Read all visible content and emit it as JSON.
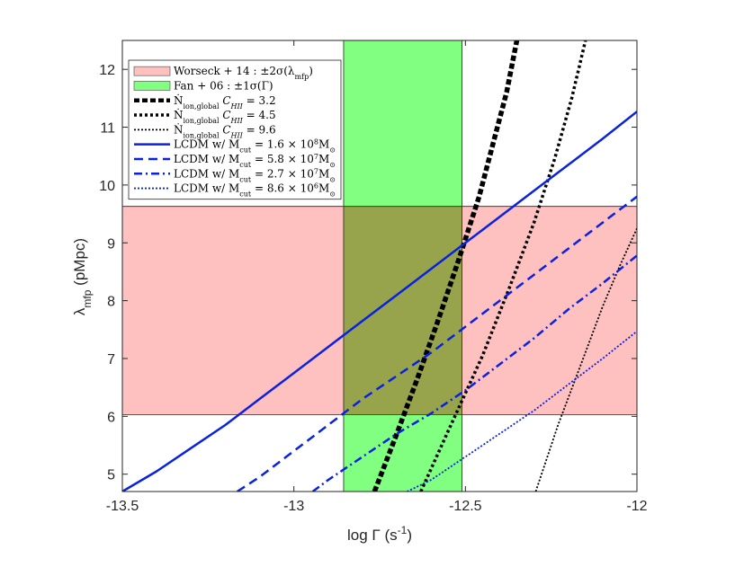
{
  "chart_data": {
    "type": "line",
    "xlabel": "log Γ (s",
    "xlabel_sup": "-1",
    "xlabel_close": ")",
    "ylabel_main": "λ",
    "ylabel_sub": "mfp",
    "ylabel_rest": " (pMpc)",
    "xlim": [
      -13.5,
      -12
    ],
    "ylim": [
      4.7,
      12.5
    ],
    "x_ticks": [
      -13.5,
      -13,
      -12.5,
      -12
    ],
    "x_tick_labels": [
      "-13.5",
      "-13",
      "-12.5",
      "-12"
    ],
    "y_ticks": [
      5,
      6,
      7,
      8,
      9,
      10,
      11,
      12
    ],
    "y_tick_labels": [
      "5",
      "6",
      "7",
      "8",
      "9",
      "10",
      "11",
      "12"
    ],
    "grid": false,
    "legend_position": "top-left",
    "bands": [
      {
        "name": "Worseck + 14 : ±2σ(λ",
        "name_sub": "mfp",
        "name_close": ")",
        "orientation": "horizontal",
        "range": [
          6.03,
          9.63
        ],
        "color": "#ffc0c0"
      },
      {
        "name": "Fan + 06 : ±1σ(Γ)",
        "orientation": "vertical",
        "range": [
          -12.855,
          -12.51
        ],
        "color": "#80ff80"
      }
    ],
    "overlap_color": "#98a44c",
    "series": [
      {
        "name": "Ṅ",
        "name_sub": "ion,global",
        "name_tail": " C",
        "name_tail_sub": "HII",
        "name_value": " = 3.2",
        "color": "#000000",
        "width": 5.5,
        "dash": "6,3",
        "x": [
          -12.765,
          -12.7,
          -12.64,
          -12.58,
          -12.52,
          -12.46,
          -12.42,
          -12.38,
          -12.35
        ],
        "y": [
          4.7,
          5.7,
          6.65,
          7.65,
          8.7,
          9.8,
          10.7,
          11.6,
          12.5
        ]
      },
      {
        "name": "Ṅ",
        "name_sub": "ion,global",
        "name_tail": " C",
        "name_tail_sub": "HII",
        "name_value": " = 4.5",
        "color": "#000000",
        "width": 3.5,
        "dash": "3,3",
        "x": [
          -12.63,
          -12.55,
          -12.45,
          -12.37,
          -12.3,
          -12.24,
          -12.19,
          -12.15
        ],
        "y": [
          4.7,
          5.75,
          7.05,
          8.25,
          9.35,
          10.45,
          11.5,
          12.5
        ]
      },
      {
        "name": "Ṅ",
        "name_sub": "ion,global",
        "name_tail": " C",
        "name_tail_sub": "HII",
        "name_value": " = 9.6",
        "color": "#000000",
        "width": 1.8,
        "dash": "2,2",
        "x": [
          -12.295,
          -12.23,
          -12.16,
          -12.1,
          -12.05,
          -12.0
        ],
        "y": [
          4.7,
          5.85,
          6.95,
          7.9,
          8.6,
          9.25
        ]
      },
      {
        "name": "LCDM w/ M",
        "name_sub": "cut",
        "name_value": " = 1.6 × 10",
        "name_sup": "8",
        "name_unit": "M",
        "name_unit_sub": "⊙",
        "color": "#0a22e0",
        "width": 2.5,
        "dash": "",
        "x": [
          -13.5,
          -13.4,
          -13.3,
          -13.2,
          -13.1,
          -13.0,
          -12.9,
          -12.8,
          -12.7,
          -12.6,
          -12.5,
          -12.4,
          -12.3,
          -12.2,
          -12.1,
          -12.0
        ],
        "y": [
          4.7,
          5.05,
          5.45,
          5.85,
          6.3,
          6.75,
          7.2,
          7.65,
          8.1,
          8.55,
          9.0,
          9.45,
          9.9,
          10.35,
          10.8,
          11.27
        ]
      },
      {
        "name": "LCDM w/ M",
        "name_sub": "cut",
        "name_value": " = 5.8 × 10",
        "name_sup": "7",
        "name_unit": "M",
        "name_unit_sub": "⊙",
        "color": "#0a22e0",
        "width": 2.5,
        "dash": "10,6",
        "x": [
          -13.165,
          -13.1,
          -13.0,
          -12.9,
          -12.8,
          -12.7,
          -12.6,
          -12.5,
          -12.4,
          -12.3,
          -12.2,
          -12.1,
          -12.0
        ],
        "y": [
          4.7,
          4.95,
          5.4,
          5.85,
          6.3,
          6.7,
          7.1,
          7.55,
          8.0,
          8.45,
          8.9,
          9.35,
          9.8
        ]
      },
      {
        "name": "LCDM w/ M",
        "name_sub": "cut",
        "name_value": " = 2.7 × 10",
        "name_sup": "7",
        "name_unit": "M",
        "name_unit_sub": "⊙",
        "color": "#0a22e0",
        "width": 2.5,
        "dash": "9,4,2,4",
        "x": [
          -12.945,
          -12.9,
          -12.8,
          -12.7,
          -12.6,
          -12.5,
          -12.4,
          -12.3,
          -12.2,
          -12.1,
          -12.0
        ],
        "y": [
          4.7,
          4.9,
          5.3,
          5.7,
          6.05,
          6.45,
          6.9,
          7.35,
          7.85,
          8.3,
          8.78
        ]
      },
      {
        "name": "LCDM w/ M",
        "name_sub": "cut",
        "name_value": " = 8.6 × 10",
        "name_sup": "6",
        "name_unit": "M",
        "name_unit_sub": "⊙",
        "color": "#0a22e0",
        "width": 1.8,
        "dash": "2,2",
        "x": [
          -12.67,
          -12.6,
          -12.5,
          -12.4,
          -12.3,
          -12.2,
          -12.1,
          -12.0
        ],
        "y": [
          4.7,
          4.9,
          5.3,
          5.7,
          6.1,
          6.55,
          7.0,
          7.47
        ]
      }
    ]
  }
}
